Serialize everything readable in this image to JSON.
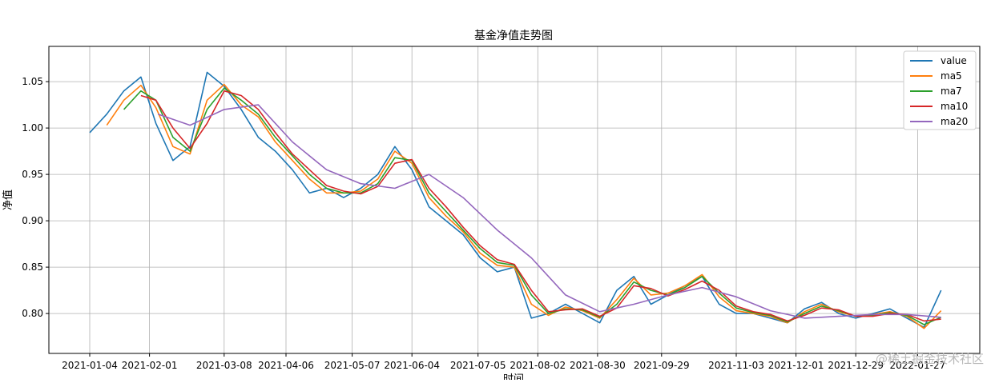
{
  "chart_data": {
    "type": "line",
    "title": "基金净值走势图",
    "xlabel": "时间",
    "ylabel": "净值",
    "ylim": [
      0.757,
      1.088
    ],
    "y_ticks": [
      0.8,
      0.85,
      0.9,
      0.95,
      1.0,
      1.05
    ],
    "y_tick_labels": [
      "0.80",
      "0.85",
      "0.90",
      "0.95",
      "1.00",
      "1.05"
    ],
    "x_tick_labels": [
      "2021-01-04",
      "2021-02-01",
      "2021-03-08",
      "2021-04-06",
      "2021-05-07",
      "2021-06-04",
      "2021-07-05",
      "2021-08-02",
      "2021-08-30",
      "2021-09-29",
      "2021-11-03",
      "2021-12-01",
      "2021-12-29",
      "2022-01-27"
    ],
    "x_range": [
      "2021-01-04",
      "2022-02-15"
    ],
    "grid": true,
    "legend_position": "top-right",
    "colors": {
      "value": "#1f77b4",
      "ma5": "#ff7f0e",
      "ma7": "#2ca02c",
      "ma10": "#d62728",
      "ma20": "#9467bd"
    },
    "series": [
      {
        "name": "value",
        "x": [
          "2021-01-04",
          "2021-01-12",
          "2021-01-20",
          "2021-01-28",
          "2021-02-04",
          "2021-02-12",
          "2021-02-20",
          "2021-02-28",
          "2021-03-08",
          "2021-03-16",
          "2021-03-24",
          "2021-04-01",
          "2021-04-09",
          "2021-04-17",
          "2021-04-25",
          "2021-05-03",
          "2021-05-11",
          "2021-05-19",
          "2021-05-27",
          "2021-06-04",
          "2021-06-12",
          "2021-06-20",
          "2021-06-28",
          "2021-07-06",
          "2021-07-14",
          "2021-07-22",
          "2021-07-30",
          "2021-08-07",
          "2021-08-15",
          "2021-08-23",
          "2021-08-31",
          "2021-09-08",
          "2021-09-16",
          "2021-09-24",
          "2021-10-02",
          "2021-10-10",
          "2021-10-18",
          "2021-10-26",
          "2021-11-03",
          "2021-11-11",
          "2021-11-19",
          "2021-11-27",
          "2021-12-05",
          "2021-12-13",
          "2021-12-21",
          "2021-12-29",
          "2022-01-06",
          "2022-01-14",
          "2022-01-22",
          "2022-01-30",
          "2022-02-07"
        ],
        "values": [
          0.995,
          1.015,
          1.04,
          1.055,
          1.005,
          0.965,
          0.98,
          1.06,
          1.045,
          1.02,
          0.99,
          0.975,
          0.955,
          0.93,
          0.935,
          0.925,
          0.935,
          0.95,
          0.98,
          0.955,
          0.915,
          0.9,
          0.885,
          0.86,
          0.845,
          0.85,
          0.795,
          0.8,
          0.81,
          0.8,
          0.79,
          0.825,
          0.84,
          0.81,
          0.82,
          0.83,
          0.84,
          0.81,
          0.8,
          0.8,
          0.795,
          0.79,
          0.805,
          0.812,
          0.8,
          0.795,
          0.8,
          0.805,
          0.795,
          0.785,
          0.825
        ]
      },
      {
        "name": "ma5",
        "x": [
          "2021-01-12",
          "2021-01-20",
          "2021-01-28",
          "2021-02-04",
          "2021-02-12",
          "2021-02-20",
          "2021-02-28",
          "2021-03-08",
          "2021-03-16",
          "2021-03-24",
          "2021-04-01",
          "2021-04-09",
          "2021-04-17",
          "2021-04-25",
          "2021-05-03",
          "2021-05-11",
          "2021-05-19",
          "2021-05-27",
          "2021-06-04",
          "2021-06-12",
          "2021-06-20",
          "2021-06-28",
          "2021-07-06",
          "2021-07-14",
          "2021-07-22",
          "2021-07-30",
          "2021-08-07",
          "2021-08-15",
          "2021-08-23",
          "2021-08-31",
          "2021-09-08",
          "2021-09-16",
          "2021-09-24",
          "2021-10-02",
          "2021-10-10",
          "2021-10-18",
          "2021-10-26",
          "2021-11-03",
          "2021-11-11",
          "2021-11-19",
          "2021-11-27",
          "2021-12-05",
          "2021-12-13",
          "2021-12-21",
          "2021-12-29",
          "2022-01-06",
          "2022-01-14",
          "2022-01-22",
          "2022-01-30",
          "2022-02-07"
        ],
        "values": [
          1.003,
          1.03,
          1.046,
          1.022,
          0.98,
          0.972,
          1.03,
          1.047,
          1.025,
          1.012,
          0.985,
          0.965,
          0.945,
          0.93,
          0.93,
          0.932,
          0.945,
          0.975,
          0.962,
          0.925,
          0.905,
          0.888,
          0.865,
          0.852,
          0.85,
          0.81,
          0.798,
          0.807,
          0.803,
          0.795,
          0.815,
          0.838,
          0.82,
          0.822,
          0.83,
          0.842,
          0.818,
          0.803,
          0.8,
          0.797,
          0.79,
          0.802,
          0.81,
          0.802,
          0.797,
          0.799,
          0.802,
          0.797,
          0.784,
          0.803
        ]
      },
      {
        "name": "ma7",
        "x": [
          "2021-01-20",
          "2021-01-28",
          "2021-02-04",
          "2021-02-12",
          "2021-02-20",
          "2021-02-28",
          "2021-03-08",
          "2021-03-16",
          "2021-03-24",
          "2021-04-01",
          "2021-04-09",
          "2021-04-17",
          "2021-04-25",
          "2021-05-03",
          "2021-05-11",
          "2021-05-19",
          "2021-05-27",
          "2021-06-04",
          "2021-06-12",
          "2021-06-20",
          "2021-06-28",
          "2021-07-06",
          "2021-07-14",
          "2021-07-22",
          "2021-07-30",
          "2021-08-07",
          "2021-08-15",
          "2021-08-23",
          "2021-08-31",
          "2021-09-08",
          "2021-09-16",
          "2021-09-24",
          "2021-10-02",
          "2021-10-10",
          "2021-10-18",
          "2021-10-26",
          "2021-11-03",
          "2021-11-11",
          "2021-11-19",
          "2021-11-27",
          "2021-12-05",
          "2021-12-13",
          "2021-12-21",
          "2021-12-29",
          "2022-01-06",
          "2022-01-14",
          "2022-01-22",
          "2022-01-30",
          "2022-02-07"
        ],
        "values": [
          1.02,
          1.04,
          1.03,
          0.99,
          0.975,
          1.02,
          1.043,
          1.03,
          1.015,
          0.99,
          0.97,
          0.95,
          0.935,
          0.93,
          0.93,
          0.94,
          0.968,
          0.965,
          0.93,
          0.91,
          0.89,
          0.87,
          0.855,
          0.852,
          0.82,
          0.8,
          0.805,
          0.804,
          0.796,
          0.81,
          0.834,
          0.825,
          0.82,
          0.828,
          0.84,
          0.822,
          0.806,
          0.801,
          0.798,
          0.791,
          0.8,
          0.808,
          0.803,
          0.797,
          0.798,
          0.801,
          0.798,
          0.788,
          0.796
        ]
      },
      {
        "name": "ma10",
        "x": [
          "2021-01-28",
          "2021-02-04",
          "2021-02-12",
          "2021-02-20",
          "2021-02-28",
          "2021-03-08",
          "2021-03-16",
          "2021-03-24",
          "2021-04-01",
          "2021-04-09",
          "2021-04-17",
          "2021-04-25",
          "2021-05-03",
          "2021-05-11",
          "2021-05-19",
          "2021-05-27",
          "2021-06-04",
          "2021-06-12",
          "2021-06-20",
          "2021-06-28",
          "2021-07-06",
          "2021-07-14",
          "2021-07-22",
          "2021-07-30",
          "2021-08-07",
          "2021-08-15",
          "2021-08-23",
          "2021-08-31",
          "2021-09-08",
          "2021-09-16",
          "2021-09-24",
          "2021-10-02",
          "2021-10-10",
          "2021-10-18",
          "2021-10-26",
          "2021-11-03",
          "2021-11-11",
          "2021-11-19",
          "2021-11-27",
          "2021-12-05",
          "2021-12-13",
          "2021-12-21",
          "2021-12-29",
          "2022-01-06",
          "2022-01-14",
          "2022-01-22",
          "2022-01-30",
          "2022-02-07"
        ],
        "values": [
          1.035,
          1.03,
          1.0,
          0.978,
          1.005,
          1.04,
          1.035,
          1.02,
          0.995,
          0.972,
          0.955,
          0.938,
          0.932,
          0.929,
          0.937,
          0.962,
          0.966,
          0.935,
          0.915,
          0.893,
          0.873,
          0.858,
          0.853,
          0.825,
          0.802,
          0.804,
          0.805,
          0.797,
          0.806,
          0.83,
          0.827,
          0.819,
          0.826,
          0.835,
          0.825,
          0.808,
          0.802,
          0.799,
          0.792,
          0.798,
          0.806,
          0.804,
          0.797,
          0.797,
          0.8,
          0.799,
          0.792,
          0.794
        ]
      },
      {
        "name": "ma20",
        "x": [
          "2021-02-05",
          "2021-02-20",
          "2021-03-08",
          "2021-03-24",
          "2021-04-09",
          "2021-04-25",
          "2021-05-11",
          "2021-05-27",
          "2021-06-12",
          "2021-06-28",
          "2021-07-14",
          "2021-07-30",
          "2021-08-15",
          "2021-08-31",
          "2021-09-16",
          "2021-10-02",
          "2021-10-18",
          "2021-11-03",
          "2021-11-19",
          "2021-12-05",
          "2021-12-21",
          "2022-01-06",
          "2022-01-22",
          "2022-02-07"
        ],
        "values": [
          1.015,
          1.003,
          1.02,
          1.025,
          0.985,
          0.955,
          0.94,
          0.935,
          0.95,
          0.925,
          0.89,
          0.86,
          0.82,
          0.802,
          0.81,
          0.82,
          0.828,
          0.818,
          0.803,
          0.795,
          0.797,
          0.799,
          0.799,
          0.796
        ]
      }
    ]
  },
  "watermark": "@稀土掘金技术社区"
}
